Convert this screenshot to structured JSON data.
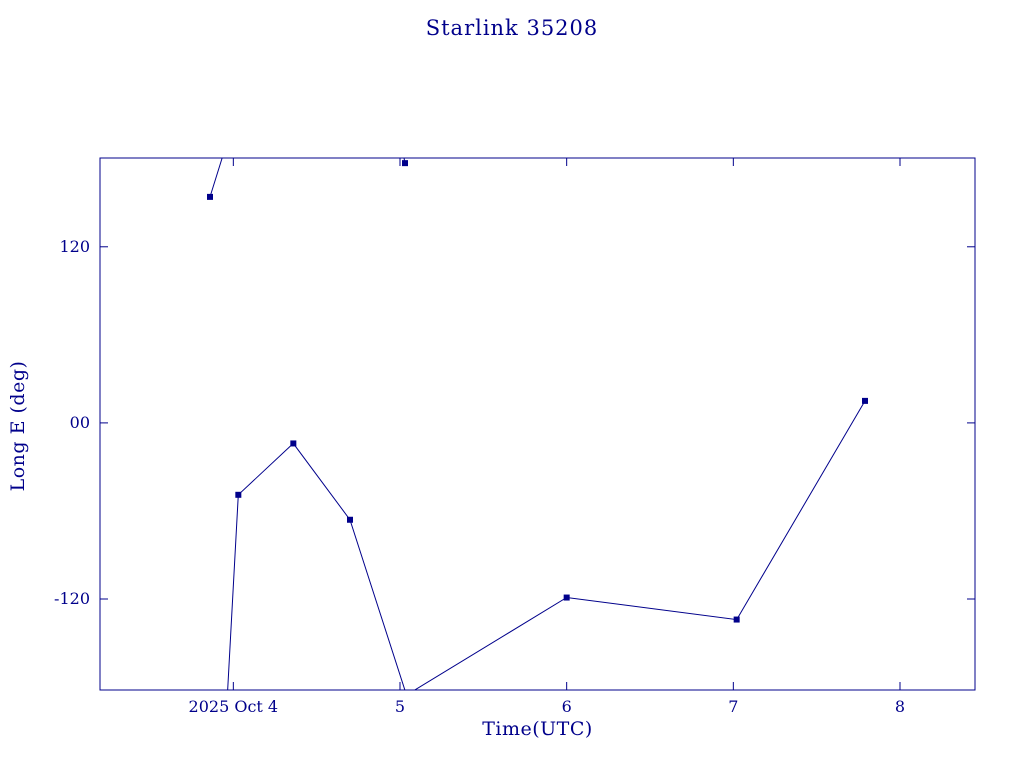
{
  "chart_data": {
    "type": "line",
    "title": "Starlink 35208",
    "xlabel": "Time(UTC)",
    "ylabel": "Long E (deg)",
    "line_color": "#00008b",
    "background_color": "#ffffff",
    "grid": false,
    "legend": "none",
    "x_units": "day of October 2025 (UTC)",
    "y_units": "degrees East longitude",
    "x_range": [
      3.2,
      8.45
    ],
    "y_range": [
      -182,
      180.5
    ],
    "x_ticks": [
      {
        "value": 4,
        "label": "2025 Oct 4"
      },
      {
        "value": 5,
        "label": "5"
      },
      {
        "value": 6,
        "label": "6"
      },
      {
        "value": 7,
        "label": "7"
      },
      {
        "value": 8,
        "label": "8"
      }
    ],
    "y_ticks": [
      {
        "value": 120,
        "label": "120"
      },
      {
        "value": 0,
        "label": "00"
      },
      {
        "value": -120,
        "label": "-120"
      }
    ],
    "points": [
      {
        "day": 3.86,
        "lon": 154
      },
      {
        "day": 4.03,
        "lon": -49
      },
      {
        "day": 4.36,
        "lon": -14
      },
      {
        "day": 4.7,
        "lon": -66
      },
      {
        "day": 5.03,
        "lon": 177
      },
      {
        "day": 6.0,
        "lon": -119
      },
      {
        "day": 7.02,
        "lon": -134
      },
      {
        "day": 7.79,
        "lon": 15
      }
    ],
    "segments": [
      [
        [
          3.86,
          154
        ],
        [
          3.94,
          183
        ]
      ],
      [
        [
          3.965,
          -184
        ],
        [
          4.03,
          -49
        ],
        [
          4.36,
          -14
        ],
        [
          4.7,
          -66
        ],
        [
          5.035,
          -184
        ]
      ],
      [
        [
          5.02,
          183
        ],
        [
          5.03,
          177
        ]
      ],
      [
        [
          5.06,
          -184
        ],
        [
          6.0,
          -119
        ],
        [
          7.02,
          -134
        ],
        [
          7.79,
          15
        ]
      ]
    ]
  }
}
